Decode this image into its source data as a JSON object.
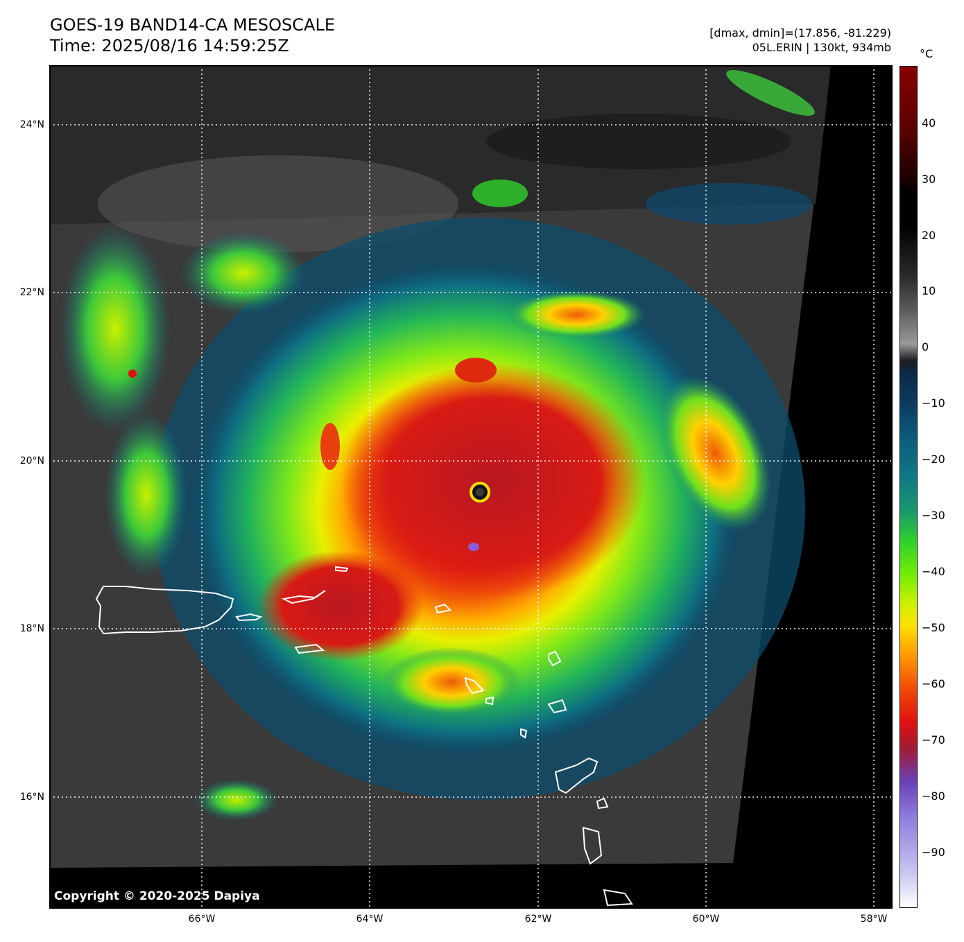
{
  "header": {
    "title_line1": "GOES-19 BAND14-CA MESOSCALE",
    "title_line2": "Time: 2025/08/16 14:59:25Z",
    "info_line1": "[dmax, dmin]=(17.856, -81.229)",
    "info_line2": "05L.ERIN | 130kt, 934mb"
  },
  "map": {
    "lat_labels": [
      "24°N",
      "22°N",
      "20°N",
      "18°N",
      "16°N"
    ],
    "lon_labels": [
      "66°W",
      "64°W",
      "62°W",
      "60°W",
      "58°W"
    ],
    "copyright": "Copyright © 2020-2025 Dapiya"
  },
  "colorbar": {
    "unit": "°C",
    "tick_labels": [
      "40",
      "30",
      "20",
      "10",
      "0",
      "−10",
      "−20",
      "−30",
      "−40",
      "−50",
      "−60",
      "−70",
      "−80",
      "−90"
    ]
  }
}
